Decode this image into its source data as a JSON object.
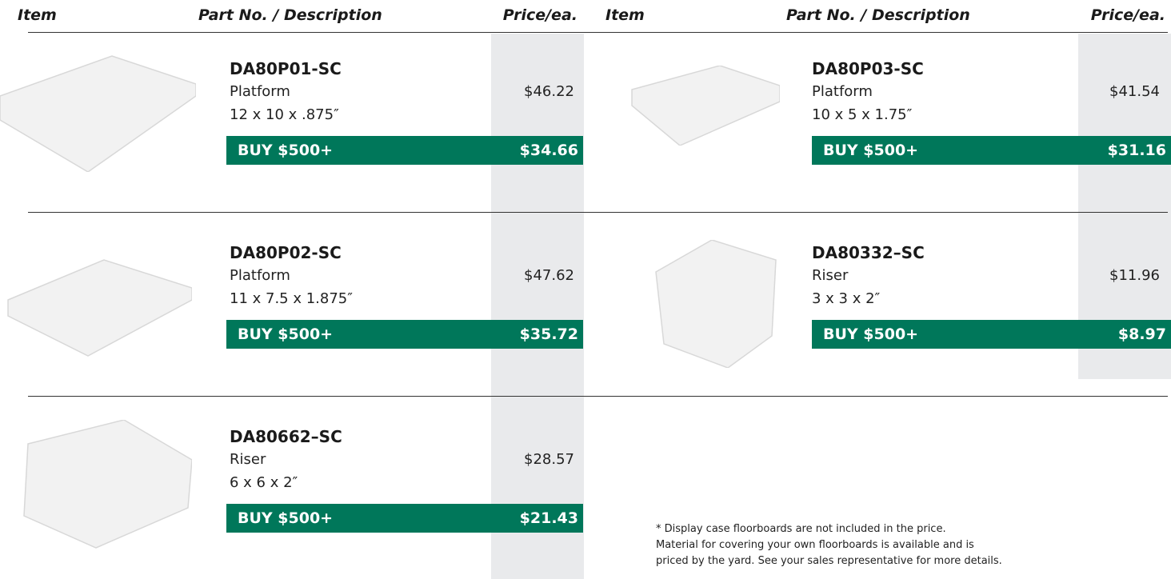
{
  "header": {
    "item": "Item",
    "description": "Part No. / Description",
    "price": "Price/ea."
  },
  "products": [
    {
      "part": "DA80P01-SC",
      "name": "Platform",
      "size": "12 x 10 x .875″",
      "price": "$46.22",
      "buy_label": "BUY $500+",
      "buy_price": "$34.66"
    },
    {
      "part": "DA80P03-SC",
      "name": "Platform",
      "size": "10 x 5 x 1.75″",
      "price": "$41.54",
      "buy_label": "BUY $500+",
      "buy_price": "$31.16"
    },
    {
      "part": "DA80P02-SC",
      "name": "Platform",
      "size": "11 x 7.5 x 1.875″",
      "price": "$47.62",
      "buy_label": "BUY $500+",
      "buy_price": "$35.72"
    },
    {
      "part": "DA80332–SC",
      "name": "Riser",
      "size": "3 x 3 x 2″",
      "price": "$11.96",
      "buy_label": "BUY $500+",
      "buy_price": "$8.97"
    },
    {
      "part": "DA80662–SC",
      "name": "Riser",
      "size": "6 x 6 x 2″",
      "price": "$28.57",
      "buy_label": "BUY $500+",
      "buy_price": "$21.43"
    }
  ],
  "footnote": [
    "* Display case floorboards are not included in the price.",
    "Material for covering your own floorboards is available and is",
    "priced by the yard.  See your sales representative for more details."
  ]
}
